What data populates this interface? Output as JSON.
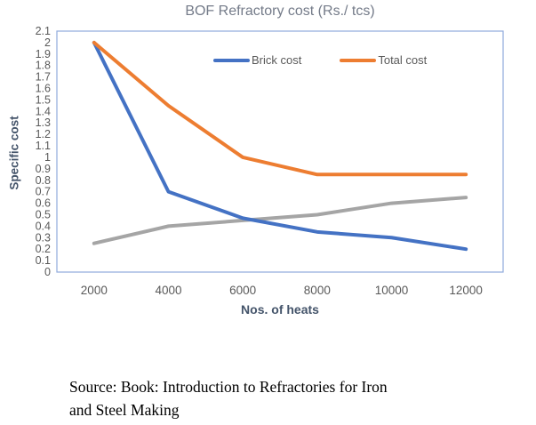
{
  "chart": {
    "title": "BOF Refractory cost (Rs./ tcs)",
    "y_axis_title": "Specific cost",
    "x_axis_title": "Nos. of heats"
  },
  "source": {
    "lines": [
      "Source: Book: Introduction to Refractories for Iron",
      "and Steel Making"
    ]
  },
  "chart_data": {
    "type": "line",
    "title": "BOF Refractory cost (Rs./ tcs)",
    "xlabel": "Nos. of heats",
    "ylabel": "Specific cost",
    "categories": [
      2000,
      4000,
      6000,
      8000,
      10000,
      12000
    ],
    "series": [
      {
        "name": "Brick cost",
        "color": "#4472C4",
        "in_legend": true,
        "values": [
          2.0,
          0.7,
          0.47,
          0.35,
          0.3,
          0.2
        ]
      },
      {
        "name": "Total cost",
        "color": "#ED7D31",
        "in_legend": true,
        "values": [
          2.0,
          1.45,
          1.0,
          0.85,
          0.85,
          0.85
        ]
      },
      {
        "name": "",
        "description": "unlabeled gray series",
        "color": "#A5A5A5",
        "in_legend": false,
        "values": [
          0.25,
          0.4,
          0.45,
          0.5,
          0.6,
          0.65
        ]
      }
    ],
    "ylim": [
      0,
      2.1
    ],
    "ytick_step": 0.1,
    "grid": false,
    "legend_position": "top-inside",
    "axis_color": "#8FAADC",
    "title_color": "#747b89",
    "tick_label_color": "#595959",
    "axis_title_color": "#44546A"
  }
}
